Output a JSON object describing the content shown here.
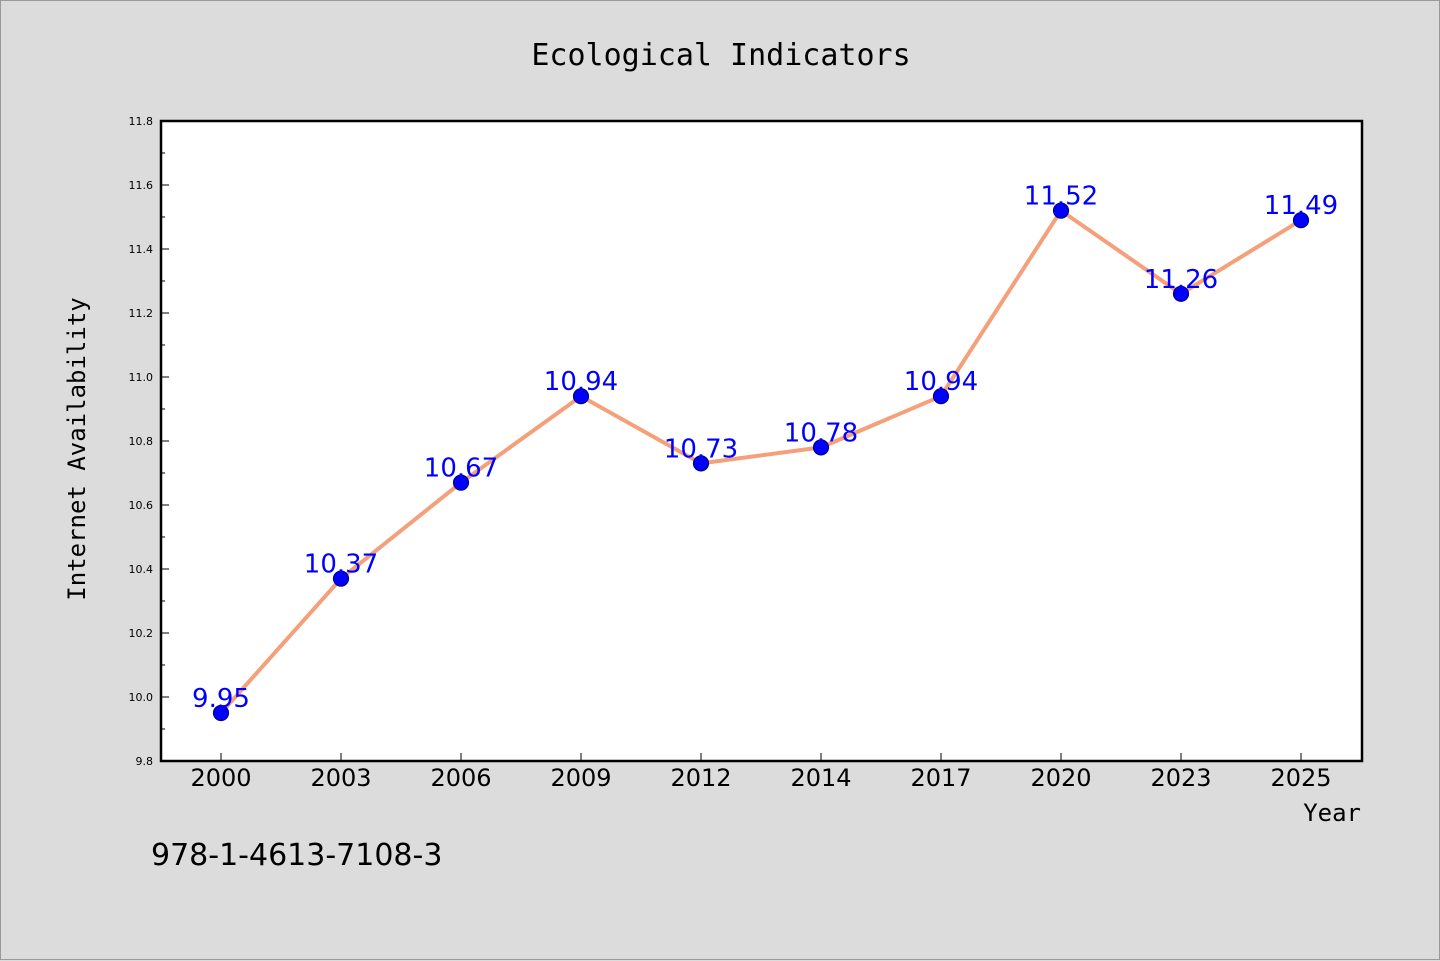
{
  "footnote": "978-1-4613-7108-3",
  "colors": {
    "line": "#f4a07a",
    "marker": "#0000ff",
    "marker_edge": "#00008b",
    "data_label": "#0000ff",
    "background": "#dcdcdc",
    "plot_background": "#ffffff"
  },
  "chart_data": {
    "type": "line",
    "title": "Ecological Indicators",
    "xlabel": "Year",
    "ylabel": "Internet Availability",
    "categories": [
      "2000",
      "2003",
      "2006",
      "2009",
      "2012",
      "2014",
      "2017",
      "2020",
      "2023",
      "2025"
    ],
    "series": [
      {
        "values": [
          9.95,
          10.37,
          10.67,
          10.94,
          10.73,
          10.78,
          10.94,
          11.52,
          11.26,
          11.49
        ],
        "labels": [
          "9.95",
          "10.37",
          "10.67",
          "10.94",
          "10.73",
          "10.78",
          "10.94",
          "11.52",
          "11.26",
          "11.49"
        ]
      }
    ],
    "ylim": [
      9.8,
      11.8
    ],
    "yticks": [
      "9.8",
      "10.0",
      "10.2",
      "10.4",
      "10.6",
      "10.8",
      "11.0",
      "11.2",
      "11.4",
      "11.6",
      "11.8"
    ],
    "grid": false,
    "legend": "none"
  }
}
